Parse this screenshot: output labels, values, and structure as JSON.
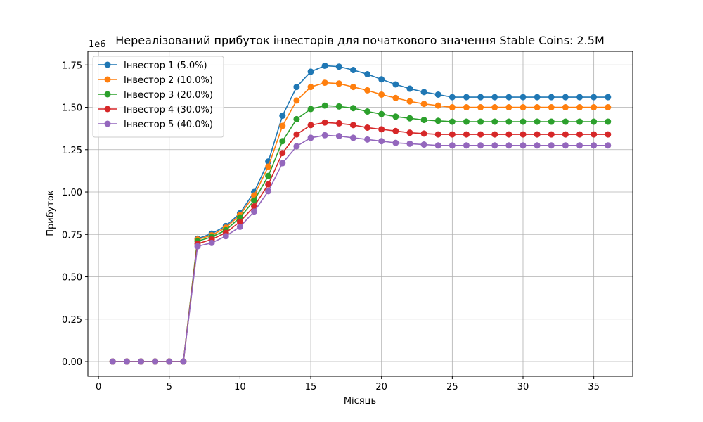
{
  "chart_data": {
    "type": "line",
    "title": "Нереалізований прибуток інвесторів для початкового значення Stable Coins: 2.5M",
    "xlabel": "Місяць",
    "ylabel": "Прибуток",
    "y_offset_label": "1e6",
    "xlim": [
      -0.75,
      37.75
    ],
    "ylim": [
      -0.087,
      1.83
    ],
    "x_ticks": [
      0,
      5,
      10,
      15,
      20,
      25,
      30,
      35
    ],
    "x_tick_labels": [
      "0",
      "5",
      "10",
      "15",
      "20",
      "25",
      "30",
      "35"
    ],
    "y_ticks": [
      0,
      0.25,
      0.5,
      0.75,
      1.0,
      1.25,
      1.5,
      1.75
    ],
    "y_tick_labels": [
      "0.00",
      "0.25",
      "0.50",
      "0.75",
      "1.00",
      "1.25",
      "1.50",
      "1.75"
    ],
    "grid": true,
    "legend_position": "top-left",
    "x": [
      1,
      2,
      3,
      4,
      5,
      6,
      7,
      8,
      9,
      10,
      11,
      12,
      13,
      14,
      15,
      16,
      17,
      18,
      19,
      20,
      21,
      22,
      23,
      24,
      25,
      26,
      27,
      28,
      29,
      30,
      31,
      32,
      33,
      34,
      35,
      36
    ],
    "series": [
      {
        "name": "Інвестор 1 (5.0%)",
        "color": "#1f77b4",
        "values": [
          0,
          0,
          0,
          0,
          0,
          0,
          0.725,
          0.755,
          0.8,
          0.875,
          1.0,
          1.18,
          1.45,
          1.62,
          1.71,
          1.745,
          1.74,
          1.72,
          1.695,
          1.665,
          1.635,
          1.61,
          1.59,
          1.575,
          1.56,
          1.56,
          1.56,
          1.56,
          1.56,
          1.56,
          1.56,
          1.56,
          1.56,
          1.56,
          1.56,
          1.56
        ]
      },
      {
        "name": "Інвестор 2 (10.0%)",
        "color": "#ff7f0e",
        "values": [
          0,
          0,
          0,
          0,
          0,
          0,
          0.72,
          0.745,
          0.79,
          0.865,
          0.98,
          1.15,
          1.39,
          1.54,
          1.62,
          1.645,
          1.64,
          1.62,
          1.6,
          1.575,
          1.555,
          1.535,
          1.52,
          1.51,
          1.5,
          1.5,
          1.5,
          1.5,
          1.5,
          1.5,
          1.5,
          1.5,
          1.5,
          1.5,
          1.5,
          1.5
        ]
      },
      {
        "name": "Інвестор 3 (20.0%)",
        "color": "#2ca02c",
        "values": [
          0,
          0,
          0,
          0,
          0,
          0,
          0.71,
          0.735,
          0.775,
          0.85,
          0.95,
          1.095,
          1.3,
          1.43,
          1.49,
          1.51,
          1.505,
          1.495,
          1.475,
          1.46,
          1.445,
          1.435,
          1.425,
          1.42,
          1.415,
          1.415,
          1.415,
          1.415,
          1.415,
          1.415,
          1.415,
          1.415,
          1.415,
          1.415,
          1.415,
          1.415
        ]
      },
      {
        "name": "Інвестор 4 (30.0%)",
        "color": "#d62728",
        "values": [
          0,
          0,
          0,
          0,
          0,
          0,
          0.695,
          0.72,
          0.76,
          0.825,
          0.915,
          1.045,
          1.23,
          1.34,
          1.395,
          1.41,
          1.405,
          1.395,
          1.38,
          1.37,
          1.36,
          1.35,
          1.345,
          1.34,
          1.34,
          1.34,
          1.34,
          1.34,
          1.34,
          1.34,
          1.34,
          1.34,
          1.34,
          1.34,
          1.34,
          1.34
        ]
      },
      {
        "name": "Інвестор 5 (40.0%)",
        "color": "#9467bd",
        "values": [
          0,
          0,
          0,
          0,
          0,
          0,
          0.68,
          0.7,
          0.74,
          0.795,
          0.885,
          1.005,
          1.17,
          1.27,
          1.32,
          1.335,
          1.33,
          1.32,
          1.31,
          1.3,
          1.29,
          1.285,
          1.28,
          1.275,
          1.275,
          1.275,
          1.275,
          1.275,
          1.275,
          1.275,
          1.275,
          1.275,
          1.275,
          1.275,
          1.275,
          1.275
        ]
      }
    ]
  }
}
